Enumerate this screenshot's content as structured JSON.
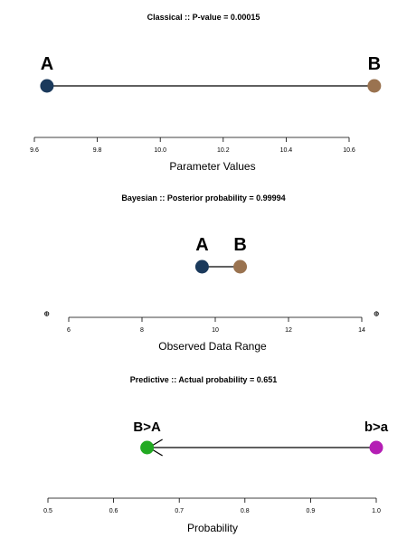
{
  "chart_data": [
    {
      "type": "scatter",
      "title": "Classical :: P-value = 0.00015",
      "xlabel": "Parameter Values",
      "xlim": [
        9.6,
        10.6
      ],
      "ticks": [
        "9.6",
        "9.8",
        "10.0",
        "10.2",
        "10.4",
        "10.6"
      ],
      "points": [
        {
          "label": "A",
          "x": 9.64,
          "color": "#1b3a5c"
        },
        {
          "label": "B",
          "x": 10.68,
          "color": "#9a7350"
        }
      ],
      "connector": "line",
      "extra_markers": []
    },
    {
      "type": "scatter",
      "title": "Bayesian :: Posterior probability = 0.99994",
      "xlabel": "Observed Data Range",
      "xlim": [
        6,
        14
      ],
      "ticks": [
        "6",
        "8",
        "10",
        "12",
        "14"
      ],
      "points": [
        {
          "label": "A",
          "x": 9.64,
          "color": "#1b3a5c"
        },
        {
          "label": "B",
          "x": 10.68,
          "color": "#9a7350"
        }
      ],
      "connector": "line",
      "extra_markers": [
        5.4,
        14.4
      ]
    },
    {
      "type": "scatter",
      "title": "Predictive :: Actual probability = 0.651",
      "xlabel": "Probability",
      "xlim": [
        0.5,
        1.0
      ],
      "ticks": [
        "0.5",
        "0.6",
        "0.7",
        "0.8",
        "0.9",
        "1.0"
      ],
      "points": [
        {
          "label": "B>A",
          "x": 0.651,
          "color": "#22aa22"
        },
        {
          "label": "b>a",
          "x": 1.0,
          "color": "#b41eb4"
        }
      ],
      "connector": "arrow",
      "extra_markers": []
    }
  ]
}
